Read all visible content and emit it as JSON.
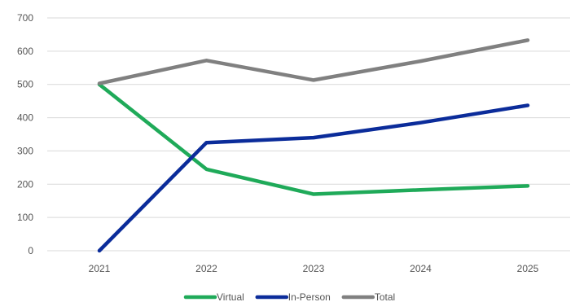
{
  "chart_data": {
    "type": "line",
    "categories": [
      "2021",
      "2022",
      "2023",
      "2024",
      "2025"
    ],
    "series": [
      {
        "name": "Virtual",
        "color": "#1faa59",
        "values": [
          500,
          245,
          170,
          183,
          195
        ]
      },
      {
        "name": "In-Person",
        "color": "#0b2c9a",
        "values": [
          0,
          325,
          340,
          385,
          437
        ]
      },
      {
        "name": "Total",
        "color": "#808080",
        "values": [
          503,
          572,
          513,
          570,
          633
        ]
      }
    ],
    "y_ticks": [
      "0",
      "100",
      "200",
      "300",
      "400",
      "500",
      "600",
      "700"
    ],
    "ylim": [
      0,
      700
    ],
    "grid": true,
    "legend": "bottom-center"
  }
}
